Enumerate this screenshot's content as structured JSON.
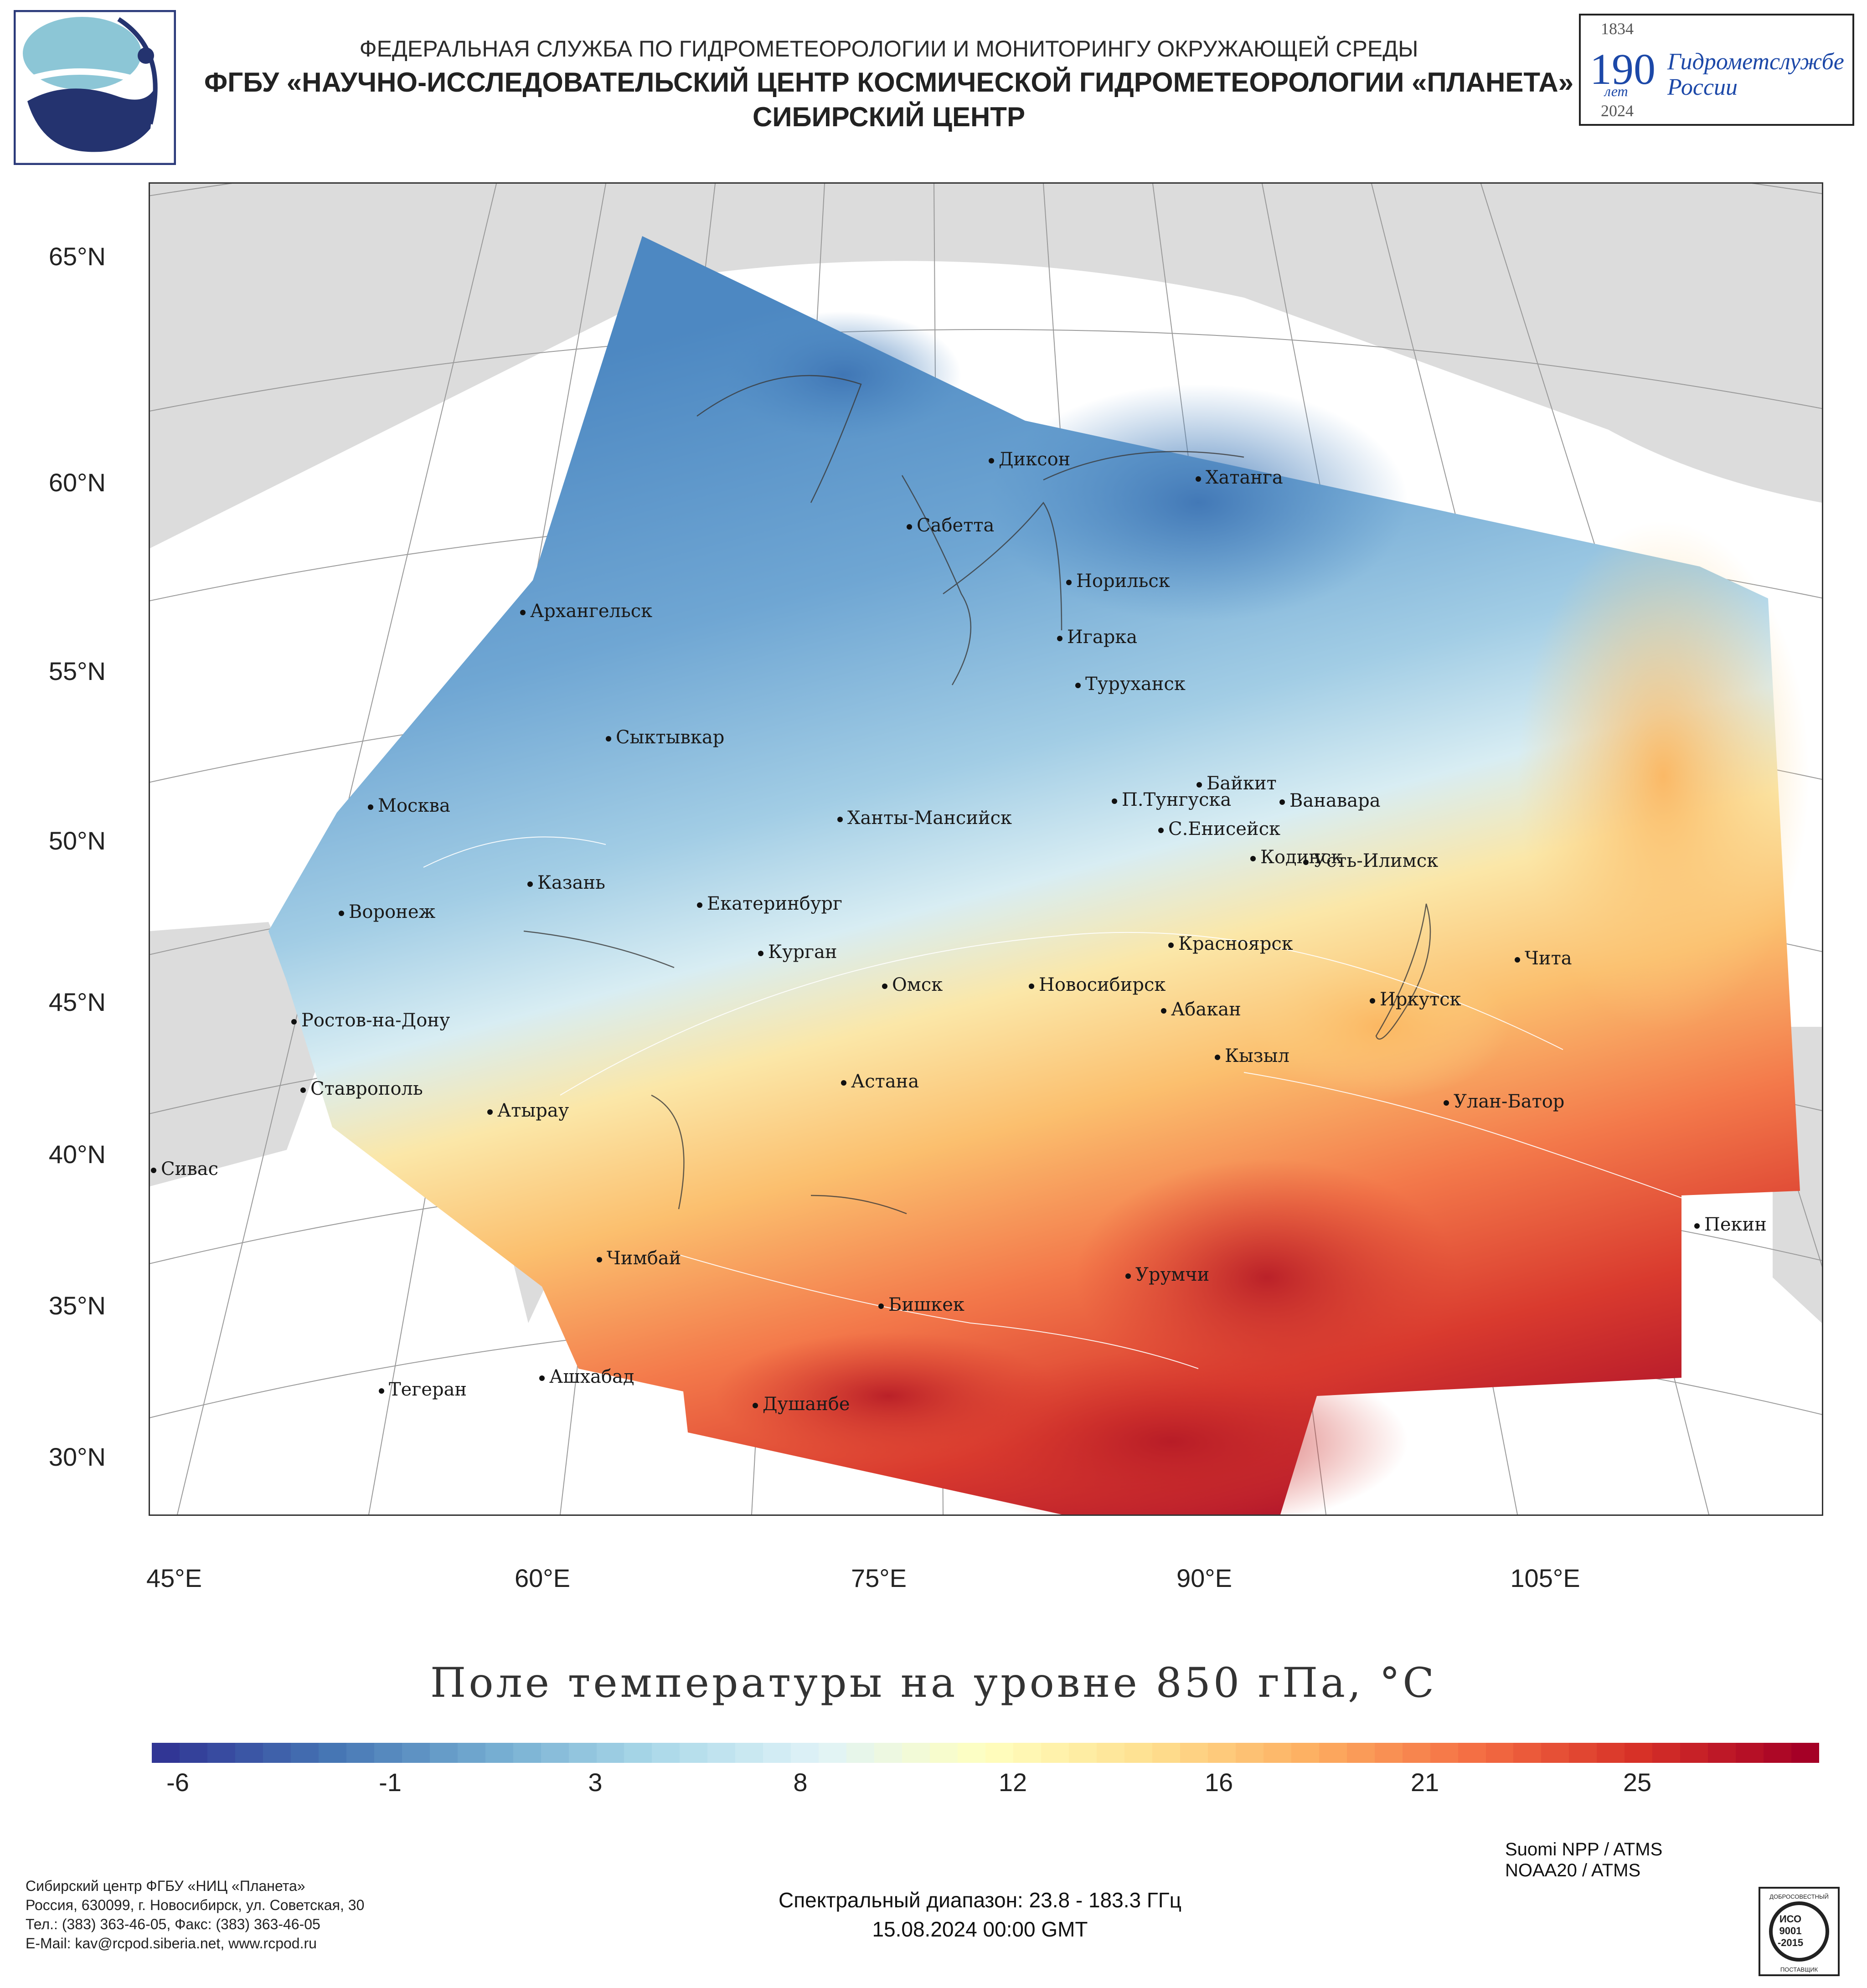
{
  "header": {
    "line1": "ФЕДЕРАЛЬНАЯ СЛУЖБА ПО ГИДРОМЕТЕОРОЛОГИИ И МОНИТОРИНГУ ОКРУЖАЮЩЕЙ СРЕДЫ",
    "line2": "ФГБУ «НАУЧНО-ИССЛЕДОВАТЕЛЬСКИЙ ЦЕНТР КОСМИЧЕСКОЙ ГИДРОМЕТЕОРОЛОГИИ «ПЛАНЕТА»",
    "line3": "СИБИРСКИЙ ЦЕНТР"
  },
  "anniversary": {
    "year_start": "1834",
    "years": "190",
    "years_word": "лет",
    "org_line1": "Гидрометслужбе",
    "org_line2": "России",
    "year_end": "2024"
  },
  "map": {
    "lat_labels": [
      "65°N",
      "60°N",
      "55°N",
      "50°N",
      "45°N",
      "40°N",
      "35°N",
      "30°N"
    ],
    "lon_labels": [
      "45°E",
      "60°E",
      "75°E",
      "90°E",
      "105°E"
    ],
    "cities": [
      {
        "name": "Диксон"
      },
      {
        "name": "Хатанга"
      },
      {
        "name": "Сабетта"
      },
      {
        "name": "Норильск"
      },
      {
        "name": "Архангельск"
      },
      {
        "name": "Игарка"
      },
      {
        "name": "Туруханск"
      },
      {
        "name": "Сыктывкар"
      },
      {
        "name": "Байкит"
      },
      {
        "name": "П.Тунгуска"
      },
      {
        "name": "Ванавара"
      },
      {
        "name": "Москва"
      },
      {
        "name": "Ханты-Мансийск"
      },
      {
        "name": "С.Енисейск"
      },
      {
        "name": "Кодинск"
      },
      {
        "name": "Усть-Илимск"
      },
      {
        "name": "Казань"
      },
      {
        "name": "Воронеж"
      },
      {
        "name": "Екатеринбург"
      },
      {
        "name": "Красноярск"
      },
      {
        "name": "Курган"
      },
      {
        "name": "Чита"
      },
      {
        "name": "Омск"
      },
      {
        "name": "Новосибирск"
      },
      {
        "name": "Иркутск"
      },
      {
        "name": "Ростов-на-Дону"
      },
      {
        "name": "Абакан"
      },
      {
        "name": "Кызыл"
      },
      {
        "name": "Астана"
      },
      {
        "name": "Ставрополь"
      },
      {
        "name": "Улан-Батор"
      },
      {
        "name": "Атырау"
      },
      {
        "name": "Сивас"
      },
      {
        "name": "Пекин"
      },
      {
        "name": "Чимбай"
      },
      {
        "name": "Урумчи"
      },
      {
        "name": "Бишкек"
      },
      {
        "name": "Ашхабад"
      },
      {
        "name": "Тегеран"
      },
      {
        "name": "Душанбе"
      }
    ]
  },
  "legend": {
    "title": "Поле температуры на уровне 850 гПа, °C",
    "ticks": [
      "-6",
      "-1",
      "3",
      "8",
      "12",
      "16",
      "21",
      "25"
    ],
    "colors": [
      "#313695",
      "#4575b4",
      "#74add1",
      "#abd9e9",
      "#e0f3f8",
      "#ffffbf",
      "#fee090",
      "#fdae61",
      "#f46d43",
      "#d73027",
      "#a50026"
    ]
  },
  "footer": {
    "org_lines": [
      "Сибирский центр ФГБУ «НИЦ «Планета»",
      "Россия, 630099, г. Новосибирск, ул. Советская, 30",
      "Тел.: (383) 363-46-05, Факс: (383) 363-46-05",
      "E-Mail: kav@rcpod.siberia.net, www.rcpod.ru"
    ],
    "satellites": [
      "Suomi NPP / ATMS",
      "NOAA20 / ATMS"
    ],
    "spectral": "Спектральный диапазон: 23.8 - 183.3 ГГц",
    "datetime": "15.08.2024 00:00 GMT",
    "iso_text": [
      "ДОБРОСОВЕСТНЫЙ",
      "ИСО",
      "9001",
      "-2015",
      "ПОСТАВЩИК"
    ]
  }
}
